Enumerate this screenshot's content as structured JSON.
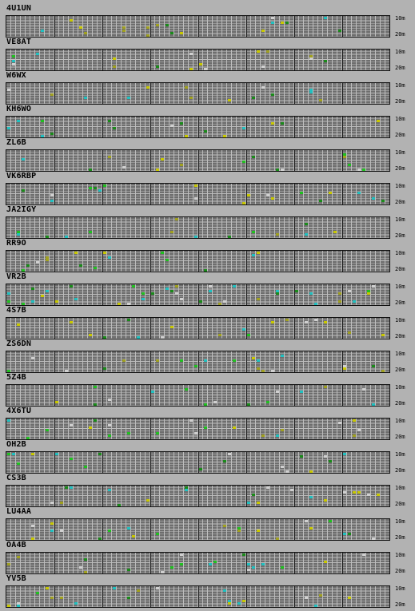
{
  "band_labels": {
    "top": "10m",
    "bottom": "20m"
  },
  "colors": {
    "background": "#b2b2b2",
    "grid_bg": "#6e6e6e",
    "grid_line": "#bdbdbd",
    "divider": "#111111",
    "spots": [
      "#20c020",
      "#c8c800",
      "#20c0c0",
      "#d0d0d0",
      "#1a8a1a",
      "#a0a020"
    ]
  },
  "stations": [
    {
      "callsign": "4U1UN"
    },
    {
      "callsign": "VE8AT"
    },
    {
      "callsign": "W6WX"
    },
    {
      "callsign": "KH6WO"
    },
    {
      "callsign": "ZL6B"
    },
    {
      "callsign": "VK6RBP"
    },
    {
      "callsign": "JA2IGY"
    },
    {
      "callsign": "RR9O"
    },
    {
      "callsign": "VR2B"
    },
    {
      "callsign": "4S7B"
    },
    {
      "callsign": "ZS6DN"
    },
    {
      "callsign": "5Z4B"
    },
    {
      "callsign": "4X6TU"
    },
    {
      "callsign": "OH2B"
    },
    {
      "callsign": "CS3B"
    },
    {
      "callsign": "LU4AA"
    },
    {
      "callsign": "OA4B"
    },
    {
      "callsign": "YV5B"
    }
  ]
}
